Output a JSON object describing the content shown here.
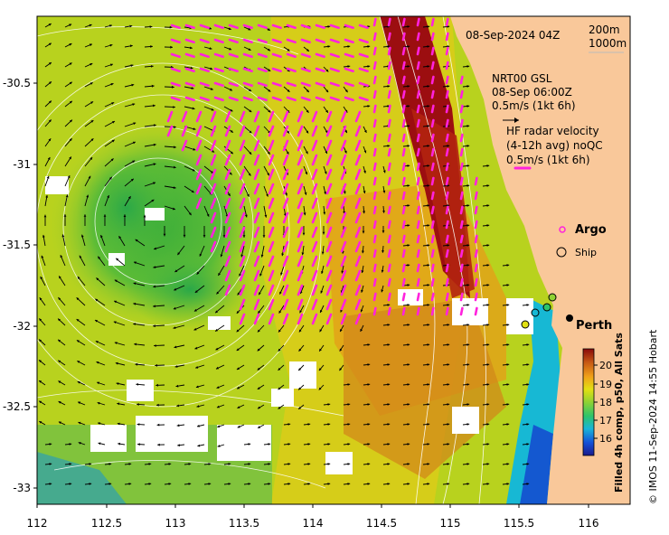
{
  "map": {
    "x_ticks": [
      "112",
      "112.5",
      "113",
      "113.5",
      "114",
      "114.5",
      "115",
      "115.5",
      "116"
    ],
    "y_ticks": [
      "-30.5",
      "-31",
      "-31.5",
      "-32",
      "-32.5",
      "-33"
    ],
    "lon_range": [
      112,
      116.3
    ],
    "lat_range": [
      -33.1,
      -30.0
    ]
  },
  "legend": {
    "date": "08-Sep-2024 04Z",
    "isobath_1": "200m",
    "isobath_2": "1000m",
    "gsl_line1": "NRT00 GSL",
    "gsl_line2": "08-Sep 06:00Z",
    "gsl_line3": "0.5m/s (1kt 6h)",
    "hf_line1": "HF radar velocity",
    "hf_line2": "(4-12h avg) noQC",
    "hf_line3": "0.5m/s (1kt 6h)",
    "argo_label": "Argo",
    "ship_label": "Ship",
    "city_label": "Perth"
  },
  "colorbar": {
    "title": "Filled 4h comp, p50, All Sats",
    "ticks": [
      "20",
      "19",
      "18",
      "17",
      "16"
    ],
    "range": [
      15.3,
      21
    ]
  },
  "credit": "© IMOS 11-Sep-2024 14:55 Hobart",
  "colors": {
    "land": "#f9c89a",
    "hf_vector": "#ff22dd",
    "gsl_vector": "#000000",
    "contour": "#ffffff"
  }
}
